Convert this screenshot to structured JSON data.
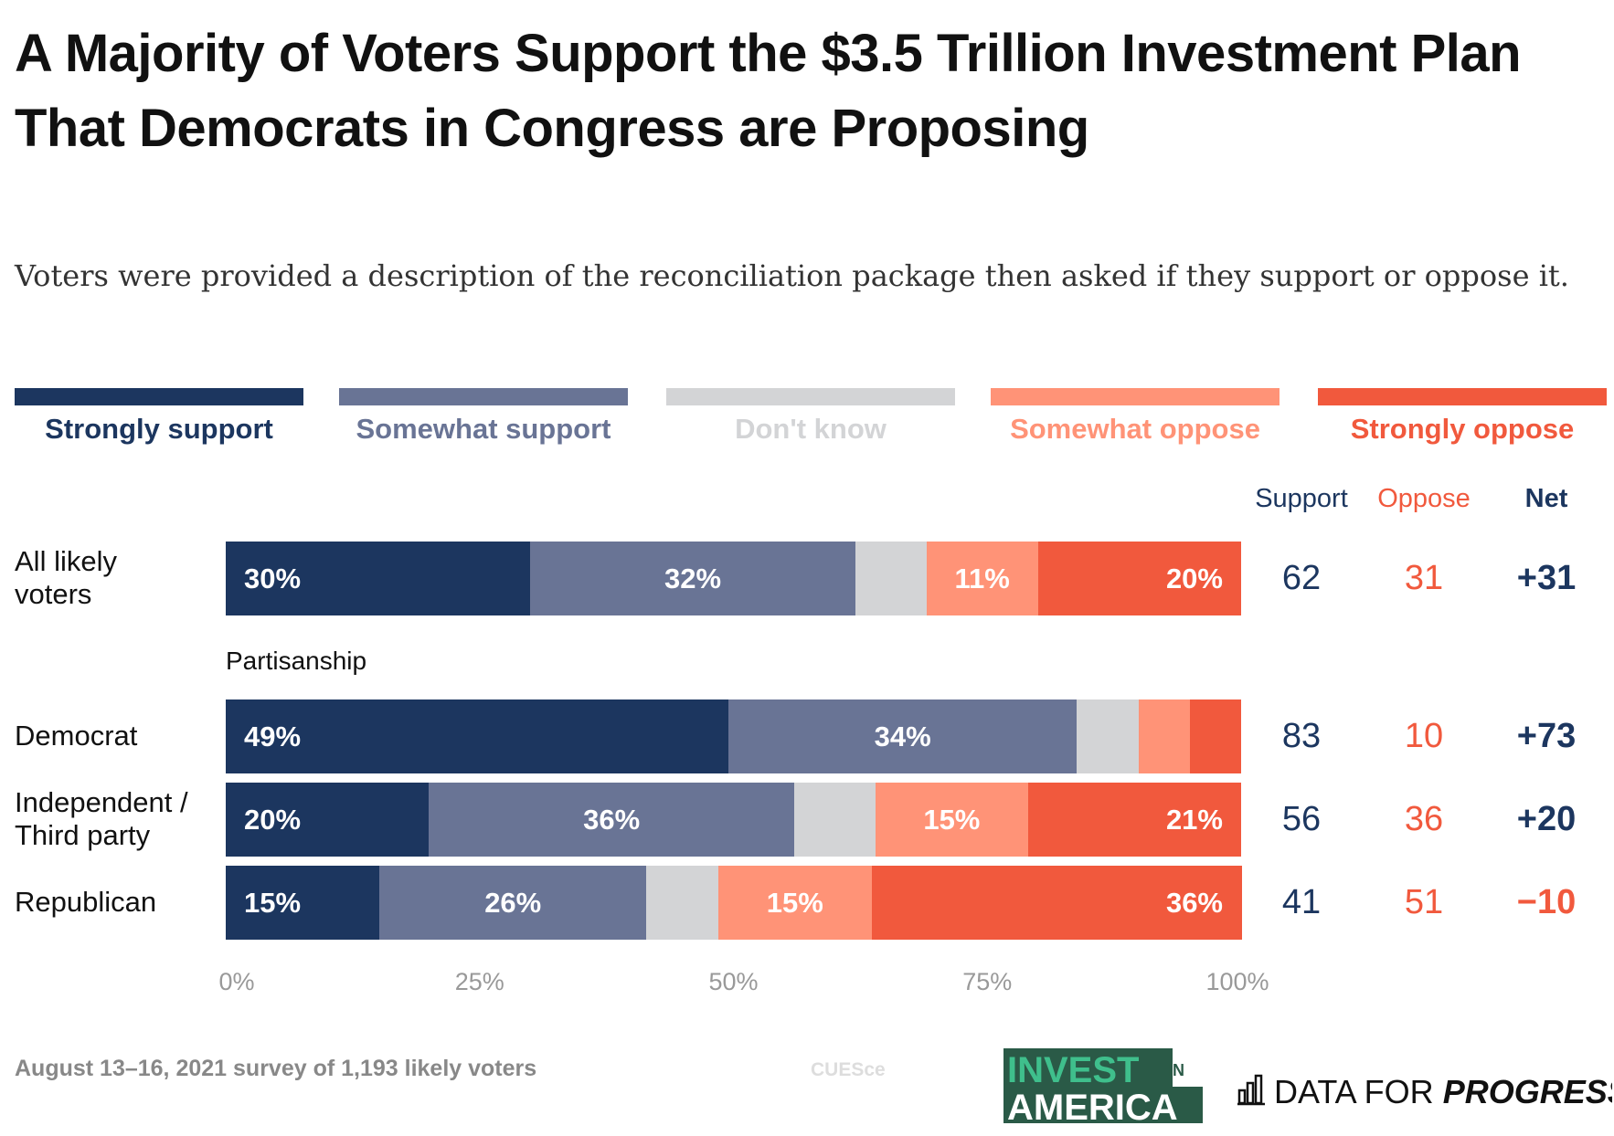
{
  "title": "A Majority of Voters Support the $3.5 Trillion Investment Plan That Democrats in Congress are Proposing",
  "subtitle": "Voters were provided a description of the reconciliation package then asked if they support or oppose it.",
  "colors": {
    "strongly_support": "#1c365f",
    "somewhat_support": "#697495",
    "dont_know": "#d3d4d6",
    "somewhat_oppose": "#ff9377",
    "strongly_oppose": "#f1593d",
    "support_text": "#1c365f",
    "oppose_text": "#f1593d"
  },
  "columns": {
    "support": "Support",
    "oppose": "Oppose",
    "net": "Net"
  },
  "section_label": "Partisanship",
  "footer": "August 13–16, 2021 survey of 1,193 likely voters",
  "credit": "CUESce",
  "logos": {
    "invest_in_america": "INVEST IN AMERICA",
    "data_for_progress": "DATA FOR PROGRESS"
  },
  "chart_data": {
    "type": "bar",
    "orientation": "horizontal-stacked",
    "legend_placement": "top",
    "xlim": [
      0,
      100
    ],
    "x_ticks": [
      "0%",
      "25%",
      "50%",
      "75%",
      "100%"
    ],
    "series": [
      {
        "name": "Strongly support",
        "color": "#1c365f"
      },
      {
        "name": "Somewhat support",
        "color": "#697495"
      },
      {
        "name": "Don't know",
        "color": "#d3d4d6"
      },
      {
        "name": "Somewhat oppose",
        "color": "#ff9377"
      },
      {
        "name": "Strongly oppose",
        "color": "#f1593d"
      }
    ],
    "rows": [
      {
        "label": "All likely voters",
        "values": [
          30,
          32,
          7,
          11,
          20
        ],
        "labels": [
          "30%",
          "32%",
          "",
          "11%",
          "20%"
        ],
        "support": "62",
        "oppose": "31",
        "net": "+31"
      },
      {
        "label": "Democrat",
        "values": [
          49,
          34,
          6,
          5,
          5
        ],
        "labels": [
          "49%",
          "34%",
          "",
          "",
          ""
        ],
        "support": "83",
        "oppose": "10",
        "net": "+73"
      },
      {
        "label": "Independent / Third party",
        "values": [
          20,
          36,
          8,
          15,
          21
        ],
        "labels": [
          "20%",
          "36%",
          "",
          "15%",
          "21%"
        ],
        "support": "56",
        "oppose": "36",
        "net": "+20"
      },
      {
        "label": "Republican",
        "values": [
          15,
          26,
          7,
          15,
          36
        ],
        "labels": [
          "15%",
          "26%",
          "",
          "15%",
          "36%"
        ],
        "support": "41",
        "oppose": "51",
        "net": "−10"
      }
    ]
  }
}
